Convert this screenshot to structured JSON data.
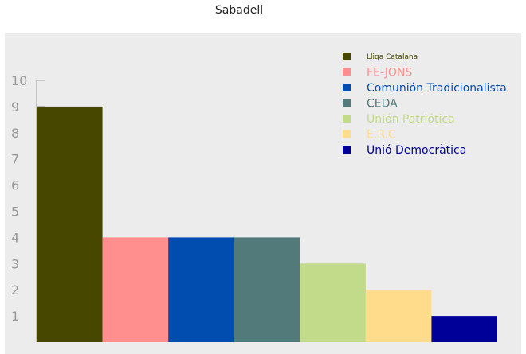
{
  "chart_data": {
    "type": "bar",
    "title": "Sabadell",
    "xlabel": "",
    "ylabel": "",
    "ylim": [
      0,
      10
    ],
    "yticks": [
      1,
      2,
      3,
      4,
      5,
      6,
      7,
      8,
      9,
      10
    ],
    "grid": false,
    "legend_position": "top-right",
    "series": [
      {
        "name": "Lliga Catalana",
        "value": 9,
        "color": "#474700"
      },
      {
        "name": "FE-JONS",
        "value": 4,
        "color": "#ff8f8f"
      },
      {
        "name": "Comunión Tradicionalista",
        "value": 4,
        "color": "#004db0"
      },
      {
        "name": "CEDA",
        "value": 4,
        "color": "#527a7a"
      },
      {
        "name": "Unión Patriótica",
        "value": 3,
        "color": "#c2db8a"
      },
      {
        "name": "E.R.C",
        "value": 2,
        "color": "#ffdb8c"
      },
      {
        "name": "Unió Democràtica",
        "value": 1,
        "color": "#000099"
      }
    ]
  }
}
